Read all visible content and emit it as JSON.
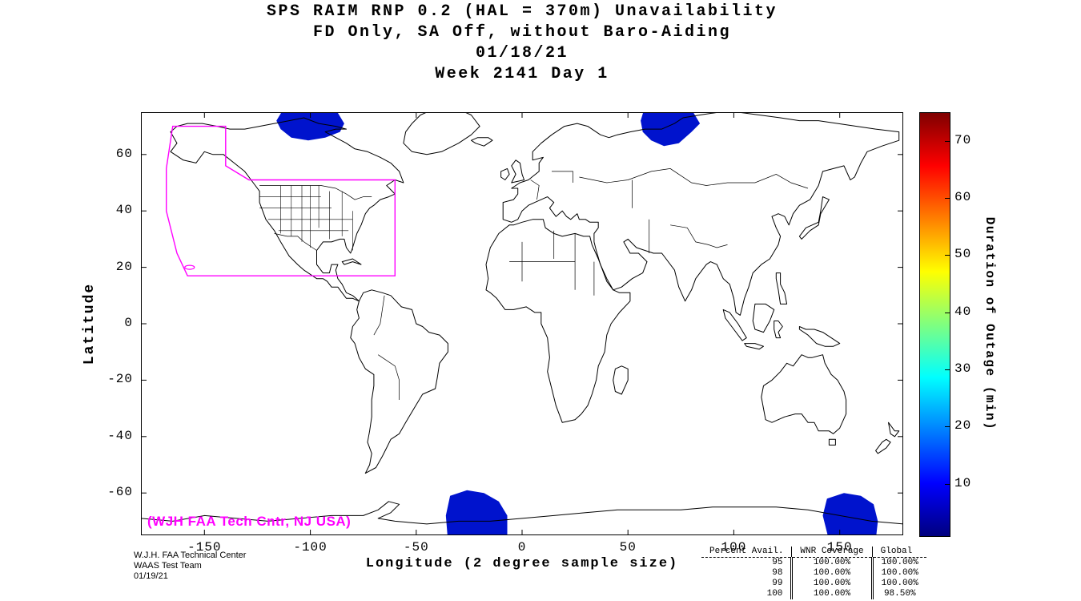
{
  "title": {
    "line1": "SPS RAIM RNP 0.2 (HAL = 370m) Unavailability",
    "line2": "FD Only, SA Off, without Baro-Aiding",
    "line3": "01/18/21",
    "line4": "Week 2141 Day 1"
  },
  "axes": {
    "xlabel": "Longitude (2 degree sample size)",
    "ylabel": "Latitude",
    "x_ticks": [
      -150,
      -100,
      -50,
      0,
      50,
      100,
      150
    ],
    "y_ticks": [
      60,
      40,
      20,
      0,
      -20,
      -40,
      -60
    ],
    "x_range": [
      -180,
      180
    ],
    "y_range": [
      -75,
      75
    ]
  },
  "colorbar": {
    "label": "Duration of Outage (min)",
    "ticks": [
      10,
      20,
      30,
      40,
      50,
      60,
      70
    ],
    "range": [
      1,
      75
    ],
    "colormap": "jet"
  },
  "annotations": {
    "map_credit": "(WJH FAA Tech Cntr, NJ USA)",
    "credit_color": "#ff00ff"
  },
  "footer": {
    "left_lines": [
      "W.J.H. FAA Technical Center",
      "WAAS Test Team",
      "01/19/21"
    ]
  },
  "stats_table": {
    "headers": [
      "Percent Avail.",
      "WNR Coverage",
      "Global"
    ],
    "rows": [
      [
        "95",
        "100.00%",
        "100.00%"
      ],
      [
        "98",
        "100.00%",
        "100.00%"
      ],
      [
        "99",
        "100.00%",
        "100.00%"
      ],
      [
        "100",
        "100.00%",
        "98.50%"
      ]
    ]
  },
  "chart_data": {
    "type": "heatmap",
    "title": "SPS RAIM RNP 0.2 (HAL = 370m) Unavailability",
    "subtitle": "FD Only, SA Off, without Baro-Aiding",
    "date": "01/18/21",
    "week_day": "Week 2141 Day 1",
    "xlabel": "Longitude (2 degree sample size)",
    "ylabel": "Latitude",
    "xlim": [
      -180,
      180
    ],
    "ylim": [
      -75,
      75
    ],
    "colorbar_label": "Duration of Outage (min)",
    "colorbar_ticks": [
      10,
      20,
      30,
      40,
      50,
      60,
      70
    ],
    "colorbar_range": [
      1,
      75
    ],
    "outage_color": "#0013cd",
    "waas_color": "#ff00ff",
    "outage_regions": [
      {
        "name": "northern-canada",
        "approx_center_lon": -100,
        "approx_center_lat": 70,
        "duration_min": 10,
        "polygon": [
          [
            -116,
            72
          ],
          [
            -112,
            77
          ],
          [
            -100,
            77
          ],
          [
            -88,
            76
          ],
          [
            -84,
            71
          ],
          [
            -86,
            68
          ],
          [
            -93,
            66
          ],
          [
            -101,
            65
          ],
          [
            -109,
            66
          ],
          [
            -114,
            69
          ]
        ]
      },
      {
        "name": "northern-russia",
        "approx_center_lon": 70,
        "approx_center_lat": 69,
        "duration_min": 10,
        "polygon": [
          [
            56,
            72
          ],
          [
            58,
            77
          ],
          [
            70,
            77
          ],
          [
            80,
            76
          ],
          [
            84,
            71
          ],
          [
            80,
            68
          ],
          [
            74,
            64
          ],
          [
            67,
            63
          ],
          [
            61,
            65
          ],
          [
            57,
            68
          ]
        ]
      },
      {
        "name": "south-atlantic",
        "approx_center_lon": -20,
        "approx_center_lat": -68,
        "duration_min": 10,
        "polygon": [
          [
            -36,
            -68
          ],
          [
            -34,
            -61
          ],
          [
            -26,
            -59
          ],
          [
            -18,
            -60
          ],
          [
            -11,
            -63
          ],
          [
            -7,
            -68
          ],
          [
            -7,
            -77
          ],
          [
            -35,
            -77
          ]
        ]
      },
      {
        "name": "south-pacific",
        "approx_center_lon": 155,
        "approx_center_lat": -68,
        "duration_min": 10,
        "polygon": [
          [
            142,
            -68
          ],
          [
            144,
            -62
          ],
          [
            152,
            -60
          ],
          [
            160,
            -61
          ],
          [
            166,
            -64
          ],
          [
            168,
            -70
          ],
          [
            167,
            -77
          ],
          [
            145,
            -77
          ]
        ]
      }
    ],
    "waas_boundary": [
      [
        -165,
        70
      ],
      [
        -140,
        70
      ],
      [
        -140,
        56
      ],
      [
        -129,
        51
      ],
      [
        -60,
        51
      ],
      [
        -60,
        17
      ],
      [
        -158,
        17
      ],
      [
        -163,
        25
      ],
      [
        -168,
        40
      ],
      [
        -168,
        55
      ]
    ],
    "stats": {
      "headers": [
        "Percent Avail.",
        "WNR Coverage",
        "Global"
      ],
      "rows": [
        [
          95,
          "100.00%",
          "100.00%"
        ],
        [
          98,
          "100.00%",
          "100.00%"
        ],
        [
          99,
          "100.00%",
          "100.00%"
        ],
        [
          100,
          "100.00%",
          "98.50%"
        ]
      ]
    }
  }
}
